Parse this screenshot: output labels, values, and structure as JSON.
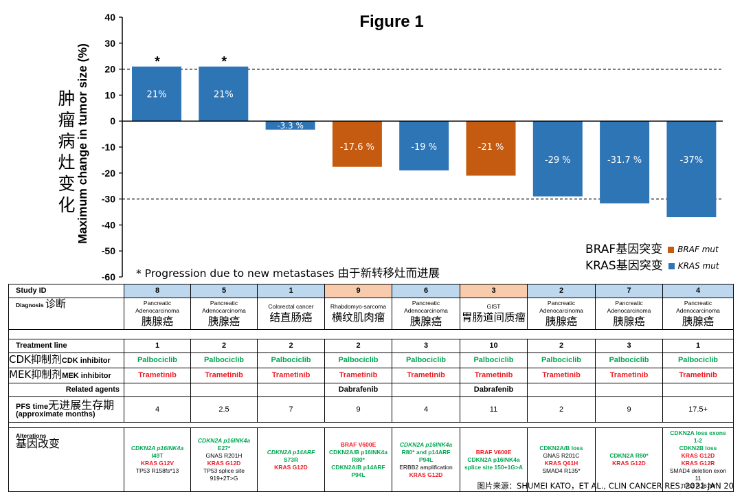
{
  "title": "Figure 1",
  "ylabel_cn": "肿瘤病灶变化",
  "ylabel_en": "Maximum change in tumor size (%)",
  "legend": {
    "braf_cn": "BRAF基因突变",
    "braf_en": "BRAF mut",
    "kras_cn": "KRAS基因突变",
    "kras_en": "KRAS mut"
  },
  "note": {
    "en": "* Progression due to new metastases",
    "cn": "由于新转移灶而进展"
  },
  "colors": {
    "kras": "#2e75b6",
    "braf": "#c55a11",
    "id_blue": "#bdd7ee",
    "id_orange": "#f8cbad"
  },
  "chart_data": {
    "type": "bar",
    "categories": [
      "8",
      "5",
      "1",
      "9",
      "6",
      "3",
      "2",
      "7",
      "4"
    ],
    "values": [
      21,
      21,
      -3.3,
      -17.6,
      -19,
      -21,
      -29,
      -31.7,
      -37
    ],
    "value_labels": [
      "21%",
      "21%",
      "-3.3 %",
      "-17.6 %",
      "-19 %",
      "-21 %",
      "-29 %",
      "-31.7 %",
      "-37%"
    ],
    "series_type": [
      "KRAS",
      "KRAS",
      "KRAS",
      "BRAF",
      "KRAS",
      "BRAF",
      "KRAS",
      "KRAS",
      "KRAS"
    ],
    "markers": [
      "*",
      "*",
      "",
      "",
      "",
      "",
      "",
      "",
      ""
    ],
    "ylim": [
      -60,
      40
    ],
    "yticks": [
      "40",
      "30",
      "20",
      "10",
      "0",
      "-10",
      "-20",
      "-30",
      "-40",
      "-50",
      "-60"
    ],
    "ytick_values": [
      40,
      30,
      20,
      10,
      0,
      -10,
      -20,
      -30,
      -40,
      -50,
      -60
    ],
    "reference_lines": [
      20,
      -30
    ],
    "legend_position": "bottom-right"
  },
  "table": {
    "labels": {
      "study_id": "Study ID",
      "diagnosis": "Diagnosis",
      "diagnosis_cn": "诊断",
      "treatment_line": "Treatment line",
      "cdk_cn": "CDK抑制剂",
      "cdk": "CDK inhibitor",
      "mek_cn": "MEK抑制剂",
      "mek": "MEK inhibitor",
      "related": "Related agents",
      "pfs": "PFS time",
      "pfs_cn": "无进展生存期",
      "pfs_sub": "(approximate months)",
      "alterations": "Alterations",
      "alterations_cn": "基因改变"
    },
    "ids": [
      "8",
      "5",
      "1",
      "9",
      "6",
      "3",
      "2",
      "7",
      "4"
    ],
    "diagnosis_en": [
      "Pancreatic Adenocarcinoma",
      "Pancreatic Adenocarcinoma",
      "Colorectal cancer",
      "Rhabdomyo-sarcoma",
      "Pancreatic Adenocarcinoma",
      "GIST",
      "Pancreatic Adenocarcinoma",
      "Pancreatic Adenocarcinoma",
      "Pancreatic Adenocarcinoma"
    ],
    "diagnosis_cn": [
      "胰腺癌",
      "胰腺癌",
      "结直肠癌",
      "横纹肌肉瘤",
      "胰腺癌",
      "胃肠道间质瘤",
      "胰腺癌",
      "胰腺癌",
      "胰腺癌"
    ],
    "treatment_line": [
      "1",
      "2",
      "2",
      "2",
      "3",
      "10",
      "2",
      "3",
      "1"
    ],
    "cdk": [
      "Palbociclib",
      "Palbociclib",
      "Palbociclib",
      "Palbociclib",
      "Palbociclib",
      "Palbociclib",
      "Palbociclib",
      "Palbociclib",
      "Palbociclib"
    ],
    "mek": [
      "Trametinib",
      "Trametinib",
      "Trametinib",
      "Trametinib",
      "Trametinib",
      "Trametinib",
      "Trametinib",
      "Trametinib",
      "Trametinib"
    ],
    "related": [
      "",
      "",
      "",
      "Dabrafenib",
      "",
      "Dabrafenib",
      "",
      "",
      ""
    ],
    "pfs": [
      "4",
      "2.5",
      "7",
      "9",
      "4",
      "11",
      "2",
      "9",
      "17.5+"
    ],
    "alterations": [
      {
        "a1": "CDKN2A p16INK4a",
        "a2": "I49T",
        "a3": "KRAS G12V",
        "a4": "TP53 R158fs*13"
      },
      {
        "a1": "CDKN2A p16INK4a",
        "a2": "E27*",
        "a3": "GNAS R201H",
        "a4": "KRAS G12D",
        "a5": "TP53 splice site",
        "a6": "919+2T>G"
      },
      {
        "a1": "CDKN2A p14ARF",
        "a2": "S73R",
        "a3": "KRAS G12D"
      },
      {
        "a1": "BRAF V600E",
        "a2": "CDKN2A/B p16INK4a",
        "a3": "R80*",
        "a4": "CDKN2A/B p14ARF",
        "a5": "P94L"
      },
      {
        "a1": "CDKN2A p16INK4a",
        "a2": "R80* and p14ARF",
        "a3": "P94L",
        "a4": "ERBB2 amplification",
        "a5": "KRAS G12D"
      },
      {
        "a1": "BRAF V600E",
        "a2": "CDKN2A p16INK4a",
        "a3": "splice site 150+1G>A"
      },
      {
        "a1": "CDKN2A/B loss",
        "a2": "GNAS R201C",
        "a3": "KRAS Q61H",
        "a4": "SMAD4 R135*"
      },
      {
        "a1": "CDKN2A R80*",
        "a2": "KRAS G12D"
      },
      {
        "a1": "CDKN2A loss exons",
        "a2": "1-2",
        "a3": "CDKN2B loss",
        "a4": "KRAS G12D",
        "a5": "KRAS G12R",
        "a6": "SMAD4 deletion exon",
        "a7": "11",
        "a8": "TP53 R267W"
      }
    ]
  },
  "source": "图片来源：SHUMEI KATO，ET AL., CLIN CANCER RES. 2021 JAN 20"
}
